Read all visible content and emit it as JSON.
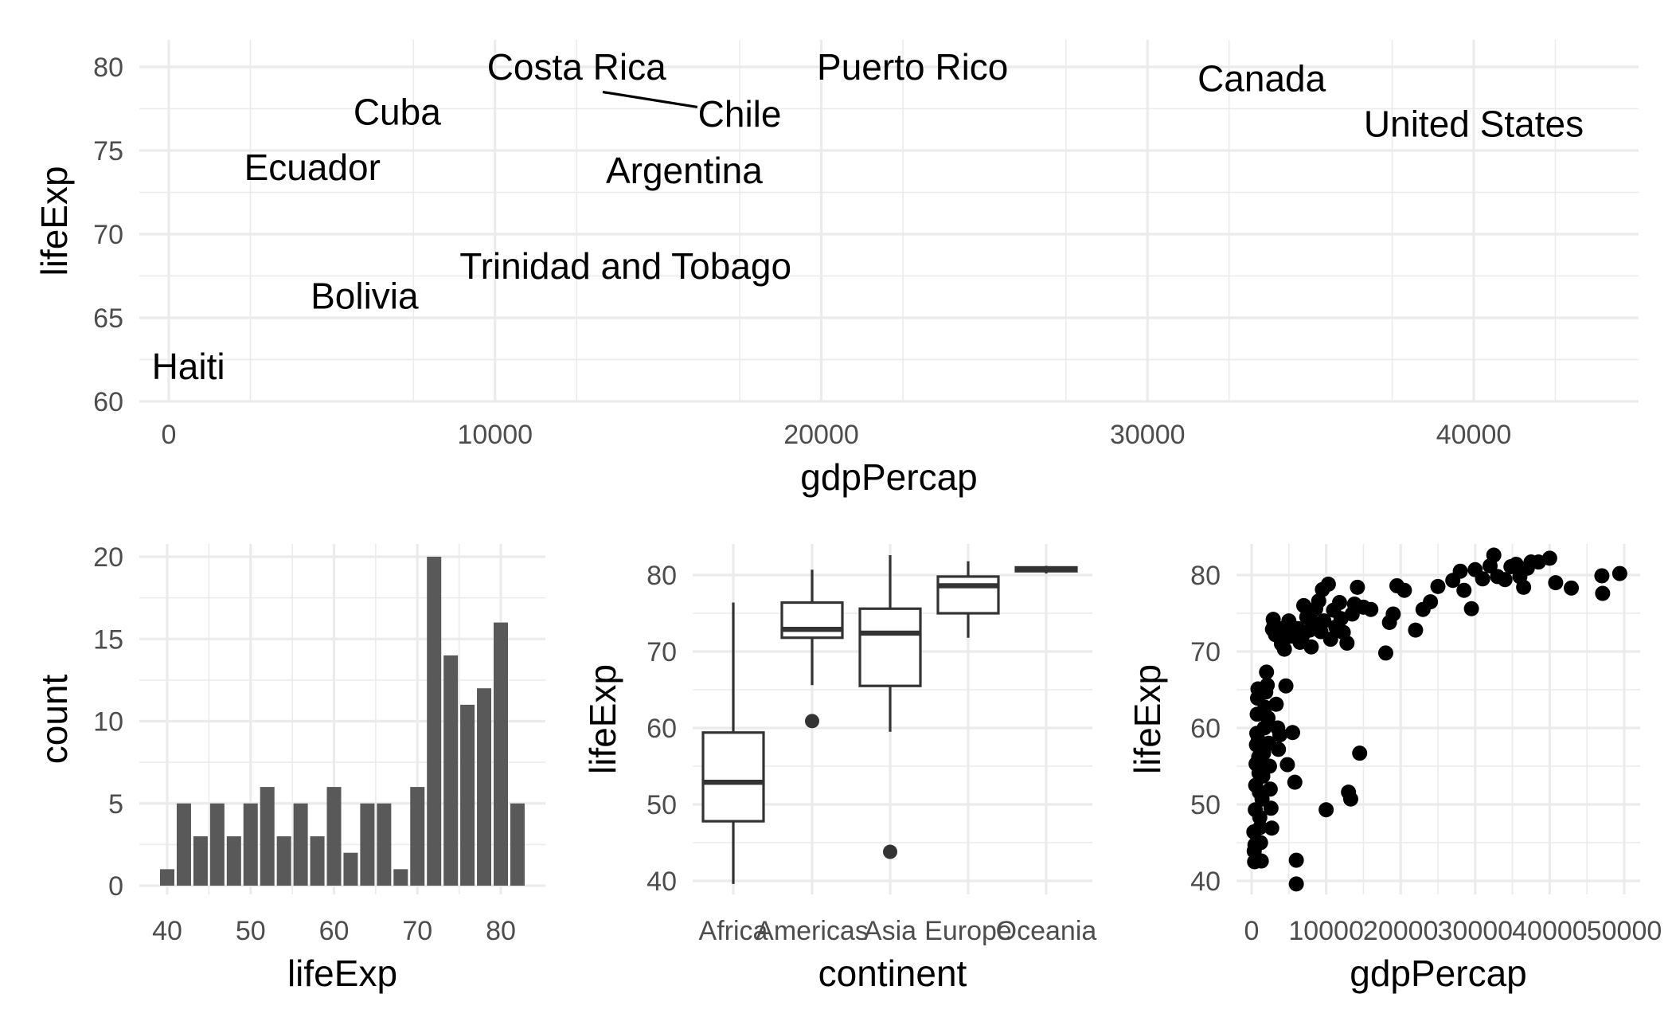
{
  "chart_data": [
    {
      "type": "scatter",
      "panel": "labelled-americas",
      "xlabel": "gdpPercap",
      "ylabel": "lifeExp",
      "xlim": [
        -1000,
        45000
      ],
      "ylim": [
        60,
        82
      ],
      "x_ticks": [
        "0",
        "10000",
        "20000",
        "30000",
        "40000"
      ],
      "y_ticks": [
        "60",
        "65",
        "70",
        "75",
        "80"
      ],
      "labels": [
        {
          "name": "Costa Rica",
          "x": 12500,
          "y": 80
        },
        {
          "name": "Puerto Rico",
          "x": 22800,
          "y": 80
        },
        {
          "name": "Canada",
          "x": 33500,
          "y": 79.3
        },
        {
          "name": "Cuba",
          "x": 7000,
          "y": 77.3
        },
        {
          "name": "Chile",
          "x": 17500,
          "y": 77.2
        },
        {
          "name": "United States",
          "x": 40000,
          "y": 76.6
        },
        {
          "name": "Ecuador",
          "x": 4400,
          "y": 74
        },
        {
          "name": "Argentina",
          "x": 15800,
          "y": 73.8
        },
        {
          "name": "Trinidad and Tobago",
          "x": 14000,
          "y": 68.1
        },
        {
          "name": "Bolivia",
          "x": 6000,
          "y": 66.3
        },
        {
          "name": "Haiti",
          "x": 600,
          "y": 62.1
        }
      ],
      "segments": [
        {
          "from_x": 13300,
          "from_y": 78.5,
          "to_x": 16200,
          "to_y": 77.6
        }
      ]
    },
    {
      "type": "bar",
      "panel": "histogram",
      "xlabel": "lifeExp",
      "ylabel": "count",
      "xlim": [
        38,
        85
      ],
      "ylim": [
        0,
        21
      ],
      "x_ticks": [
        "40",
        "50",
        "60",
        "70",
        "80"
      ],
      "y_ticks": [
        "0",
        "5",
        "10",
        "15",
        "20"
      ],
      "bin_centers": [
        40,
        42,
        44,
        46,
        48,
        50,
        52,
        54,
        56,
        58,
        60,
        62,
        64,
        66,
        68,
        70,
        72,
        74,
        76,
        78,
        80,
        82
      ],
      "values": [
        1,
        5,
        3,
        5,
        3,
        5,
        6,
        3,
        5,
        3,
        6,
        2,
        5,
        5,
        1,
        6,
        20,
        14,
        11,
        12,
        16,
        5
      ]
    },
    {
      "type": "box",
      "panel": "boxplot",
      "xlabel": "continent",
      "ylabel": "lifeExp",
      "ylim": [
        38,
        84
      ],
      "y_ticks": [
        "40",
        "50",
        "60",
        "70",
        "80"
      ],
      "categories": [
        "Africa",
        "Americas",
        "Asia",
        "Europe",
        "Oceania"
      ],
      "boxes": [
        {
          "name": "Africa",
          "whisker_low": 39.6,
          "q1": 47.8,
          "median": 52.9,
          "q3": 59.4,
          "whisker_high": 76.4,
          "outliers": []
        },
        {
          "name": "Americas",
          "whisker_low": 65.6,
          "q1": 71.8,
          "median": 72.9,
          "q3": 76.4,
          "whisker_high": 80.7,
          "outliers": [
            60.9
          ]
        },
        {
          "name": "Asia",
          "whisker_low": 59.5,
          "q1": 65.5,
          "median": 72.4,
          "q3": 75.6,
          "whisker_high": 82.6,
          "outliers": [
            43.8
          ]
        },
        {
          "name": "Europe",
          "whisker_low": 71.8,
          "q1": 75.0,
          "median": 78.6,
          "q3": 79.8,
          "whisker_high": 81.8,
          "outliers": []
        },
        {
          "name": "Oceania",
          "whisker_low": 80.2,
          "q1": 80.5,
          "median": 80.7,
          "q3": 81.0,
          "whisker_high": 81.2,
          "outliers": []
        }
      ]
    },
    {
      "type": "scatter",
      "panel": "gdp-vs-lifeexp",
      "xlabel": "gdpPercap",
      "ylabel": "lifeExp",
      "xlim": [
        -2000,
        51000
      ],
      "ylim": [
        38,
        84
      ],
      "x_ticks": [
        "0",
        "10000",
        "20000",
        "30000",
        "40000",
        "50000"
      ],
      "y_ticks": [
        "40",
        "50",
        "60",
        "70",
        "80"
      ],
      "points": [
        [
          300,
          46.4
        ],
        [
          350,
          43.9
        ],
        [
          400,
          42.5
        ],
        [
          450,
          44.7
        ],
        [
          500,
          49.3
        ],
        [
          550,
          52.5
        ],
        [
          600,
          55.3
        ],
        [
          650,
          57.8
        ],
        [
          700,
          59.3
        ],
        [
          750,
          61.8
        ],
        [
          800,
          63.9
        ],
        [
          850,
          65.1
        ],
        [
          900,
          58.4
        ],
        [
          950,
          56.2
        ],
        [
          1000,
          54.1
        ],
        [
          1050,
          51.6
        ],
        [
          1100,
          48.3
        ],
        [
          1150,
          47.0
        ],
        [
          1200,
          45.0
        ],
        [
          1300,
          42.6
        ],
        [
          1400,
          50.7
        ],
        [
          1500,
          53.7
        ],
        [
          1600,
          56.7
        ],
        [
          1700,
          60.0
        ],
        [
          1800,
          62.7
        ],
        [
          1900,
          64.7
        ],
        [
          2000,
          67.3
        ],
        [
          2100,
          65.6
        ],
        [
          2200,
          61.3
        ],
        [
          2300,
          58.0
        ],
        [
          2400,
          55.0
        ],
        [
          2500,
          52.0
        ],
        [
          2600,
          49.5
        ],
        [
          2700,
          46.9
        ],
        [
          2800,
          72.9
        ],
        [
          2900,
          74.2
        ],
        [
          3000,
          73.4
        ],
        [
          3200,
          72.2
        ],
        [
          3300,
          63.1
        ],
        [
          3500,
          60.0
        ],
        [
          3600,
          57.2
        ],
        [
          3800,
          59.1
        ],
        [
          4000,
          71.0
        ],
        [
          4200,
          73.0
        ],
        [
          4400,
          70.3
        ],
        [
          4600,
          65.5
        ],
        [
          4800,
          55.2
        ],
        [
          5000,
          74.0
        ],
        [
          5200,
          72.0
        ],
        [
          5500,
          59.4
        ],
        [
          5800,
          52.9
        ],
        [
          6000,
          42.7
        ],
        [
          6000,
          39.6
        ],
        [
          6200,
          73.0
        ],
        [
          6500,
          71.2
        ],
        [
          6800,
          72.0
        ],
        [
          7000,
          76.0
        ],
        [
          7400,
          74.5
        ],
        [
          7800,
          72.8
        ],
        [
          8000,
          70.6
        ],
        [
          8300,
          73.8
        ],
        [
          8600,
          75.6
        ],
        [
          9000,
          76.6
        ],
        [
          9300,
          72.6
        ],
        [
          9500,
          78.1
        ],
        [
          9700,
          74.0
        ],
        [
          10000,
          49.3
        ],
        [
          10300,
          78.8
        ],
        [
          10600,
          71.6
        ],
        [
          11000,
          75.4
        ],
        [
          11300,
          73.2
        ],
        [
          11800,
          76.4
        ],
        [
          12000,
          74.3
        ],
        [
          12300,
          72.5
        ],
        [
          12800,
          71.1
        ],
        [
          13000,
          51.6
        ],
        [
          13300,
          50.7
        ],
        [
          13500,
          74.9
        ],
        [
          13800,
          76.2
        ],
        [
          14200,
          78.4
        ],
        [
          14500,
          56.7
        ],
        [
          15000,
          75.8
        ],
        [
          16000,
          75.5
        ],
        [
          18000,
          69.8
        ],
        [
          18500,
          73.8
        ],
        [
          19000,
          74.9
        ],
        [
          19500,
          78.6
        ],
        [
          20500,
          78.0
        ],
        [
          22000,
          72.8
        ],
        [
          23000,
          75.5
        ],
        [
          24000,
          76.5
        ],
        [
          25000,
          78.5
        ],
        [
          27000,
          79.3
        ],
        [
          28000,
          80.5
        ],
        [
          28500,
          78.0
        ],
        [
          29500,
          75.6
        ],
        [
          30000,
          80.7
        ],
        [
          31000,
          79.5
        ],
        [
          32000,
          81.2
        ],
        [
          32500,
          82.6
        ],
        [
          33000,
          79.8
        ],
        [
          34000,
          79.4
        ],
        [
          34800,
          81.1
        ],
        [
          35500,
          81.4
        ],
        [
          36000,
          79.8
        ],
        [
          36500,
          78.4
        ],
        [
          37000,
          80.9
        ],
        [
          37500,
          81.7
        ],
        [
          38500,
          81.7
        ],
        [
          40000,
          82.2
        ],
        [
          40800,
          79.0
        ],
        [
          42900,
          78.3
        ],
        [
          47000,
          79.9
        ],
        [
          47100,
          77.6
        ],
        [
          49400,
          80.2
        ]
      ]
    }
  ]
}
